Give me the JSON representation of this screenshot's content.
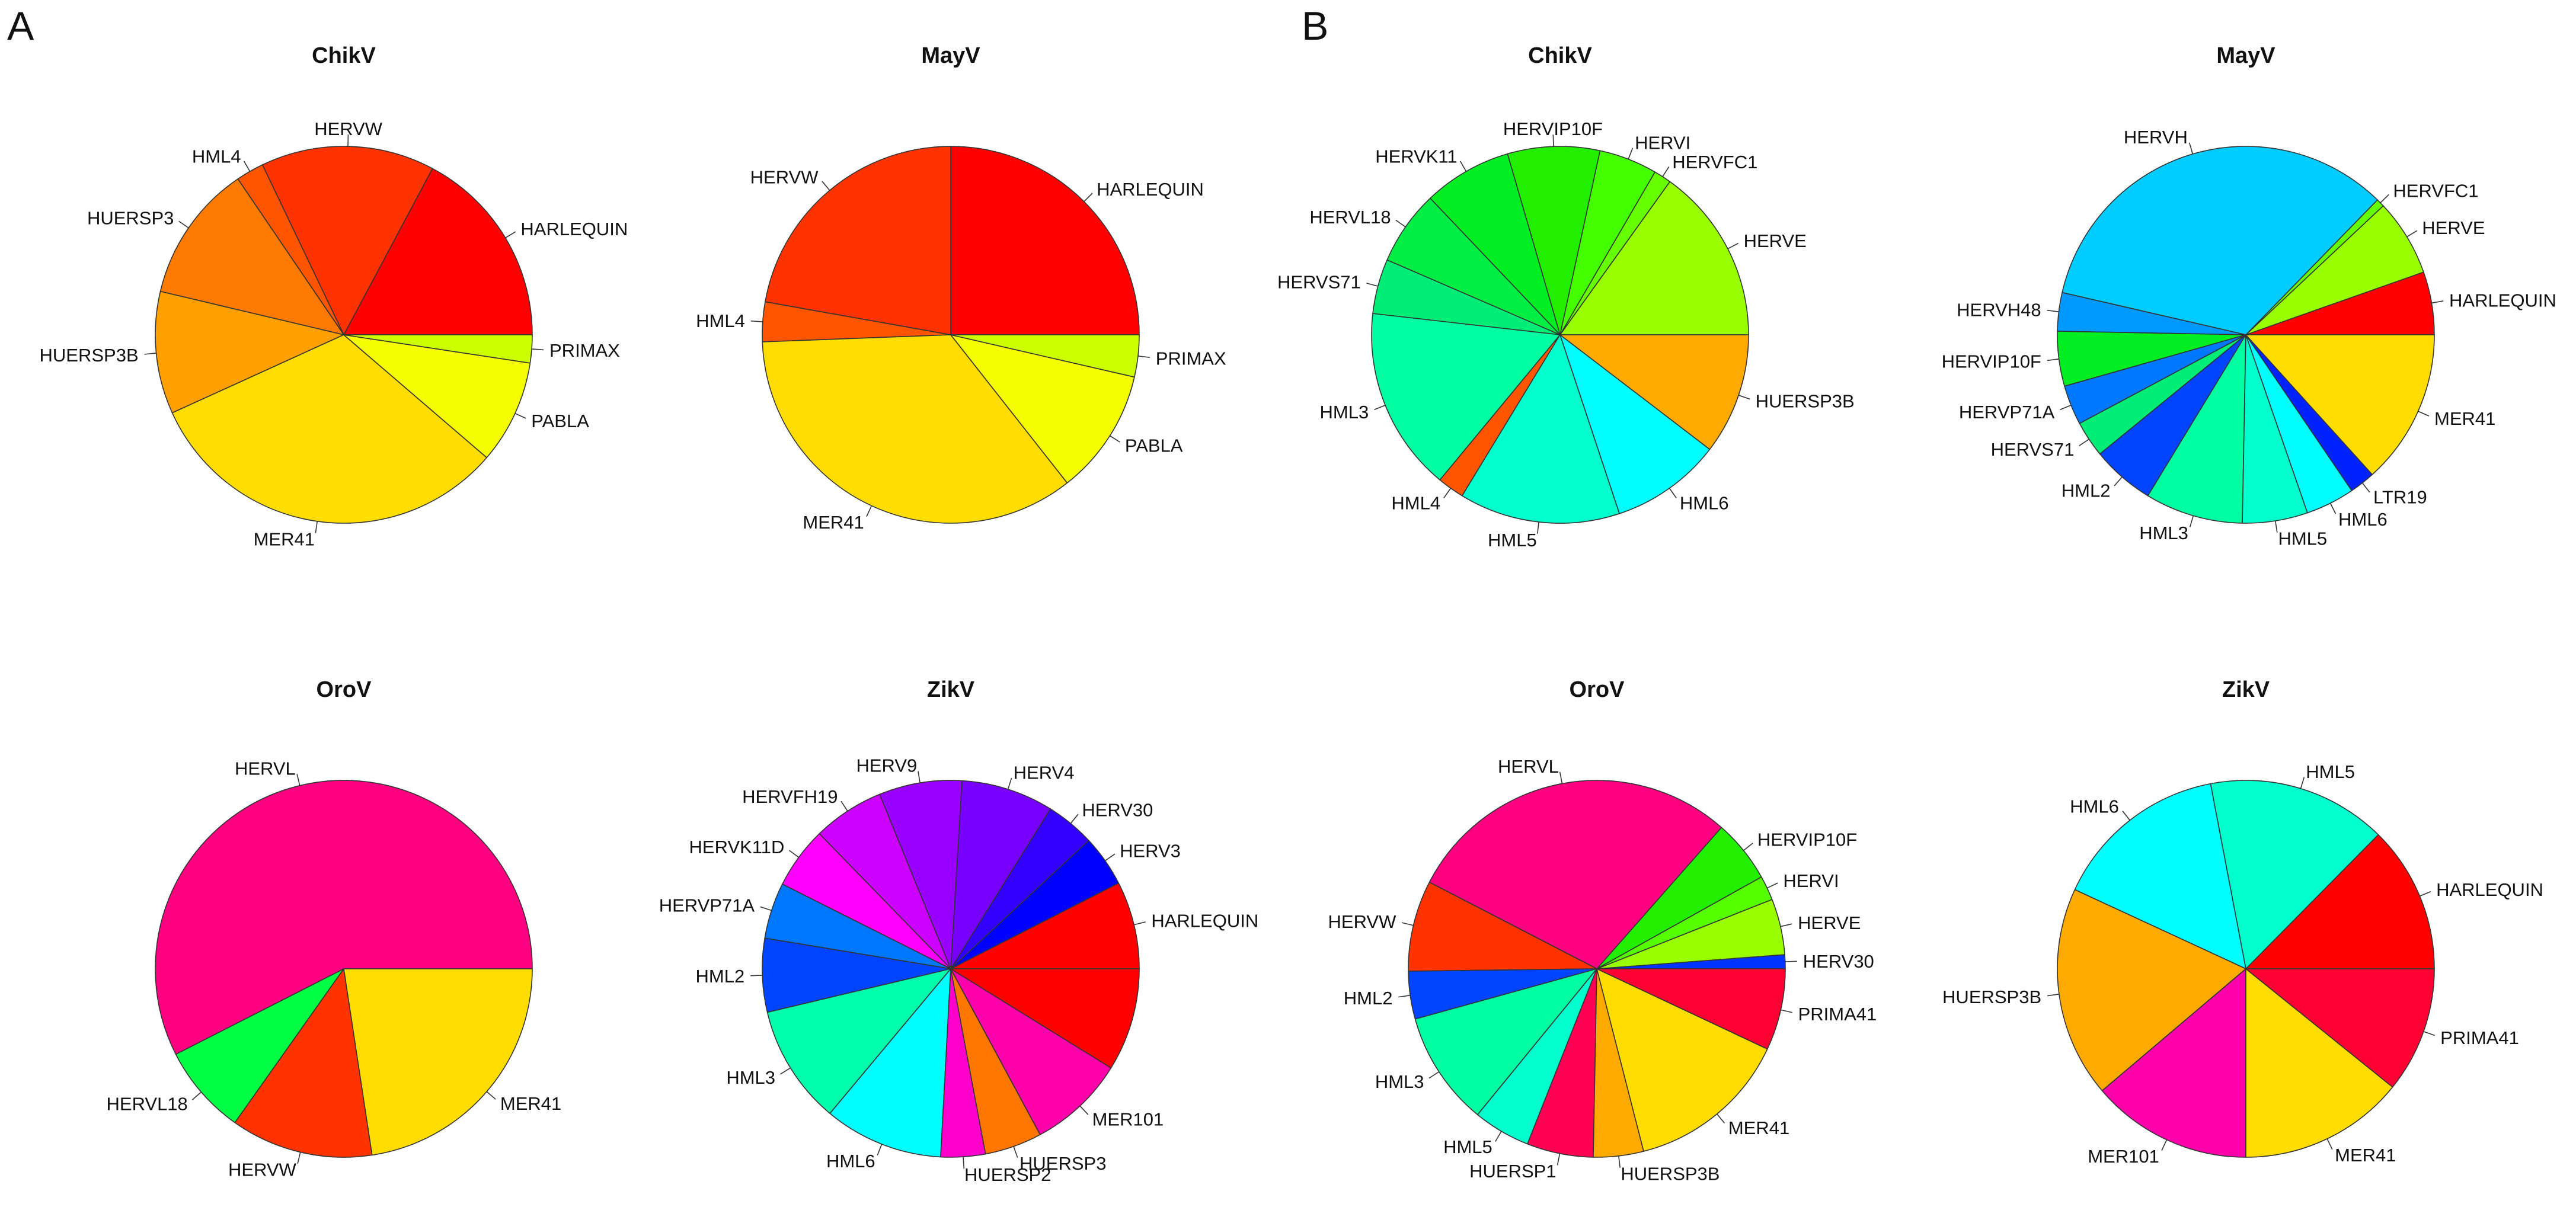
{
  "figure": {
    "panels": [
      {
        "label": "A"
      },
      {
        "label": "B"
      }
    ]
  },
  "chart_data": [
    {
      "panel": "A",
      "type": "pie",
      "title": "ChikV",
      "start": "right",
      "direction": "counterclockwise",
      "slices": [
        {
          "label": "HARLEQUIN",
          "value": 17.2,
          "color": "#FF0000"
        },
        {
          "label": "HERVW",
          "value": 14.9,
          "color": "#FF3300"
        },
        {
          "label": "HML4",
          "value": 2.4,
          "color": "#FF5500"
        },
        {
          "label": "HUERSP3",
          "value": 11.8,
          "color": "#FF7A00"
        },
        {
          "label": "HUERSP3B",
          "value": 10.5,
          "color": "#FF9F00"
        },
        {
          "label": "MER41",
          "value": 31.9,
          "color": "#FFDD00"
        },
        {
          "label": "PABLA",
          "value": 8.9,
          "color": "#F5FF00"
        },
        {
          "label": "PRIMAX",
          "value": 2.4,
          "color": "#CCFF00"
        }
      ]
    },
    {
      "panel": "A",
      "type": "pie",
      "title": "MayV",
      "start": "right",
      "direction": "counterclockwise",
      "slices": [
        {
          "label": "HARLEQUIN",
          "value": 25.0,
          "color": "#FF0000"
        },
        {
          "label": "HERVW",
          "value": 22.2,
          "color": "#FF3300"
        },
        {
          "label": "HML4",
          "value": 3.4,
          "color": "#FF5500"
        },
        {
          "label": "MER41",
          "value": 35.0,
          "color": "#FFDD00"
        },
        {
          "label": "PABLA",
          "value": 10.8,
          "color": "#F5FF00"
        },
        {
          "label": "PRIMAX",
          "value": 3.6,
          "color": "#CCFF00"
        }
      ]
    },
    {
      "panel": "A",
      "type": "pie",
      "title": "OroV",
      "start": "right",
      "direction": "counterclockwise",
      "slices": [
        {
          "label": "HERVL",
          "value": 57.5,
          "color": "#FF0080"
        },
        {
          "label": "HERVL18",
          "value": 7.7,
          "color": "#00FF44"
        },
        {
          "label": "HERVW",
          "value": 12.2,
          "color": "#FF3300"
        },
        {
          "label": "MER41",
          "value": 22.6,
          "color": "#FFDD00"
        }
      ]
    },
    {
      "panel": "A",
      "type": "pie",
      "title": "ZikV",
      "start": "right",
      "direction": "counterclockwise",
      "slices": [
        {
          "label": "HARLEQUIN",
          "value": 7.5,
          "color": "#FF0000"
        },
        {
          "label": "HERV3",
          "value": 4.4,
          "color": "#0000FF"
        },
        {
          "label": "HERV30",
          "value": 4.2,
          "color": "#3300FF"
        },
        {
          "label": "HERV4",
          "value": 7.9,
          "color": "#7700FF"
        },
        {
          "label": "HERV9",
          "value": 7.1,
          "color": "#9900FF"
        },
        {
          "label": "HERVFH19",
          "value": 6.1,
          "color": "#CC00FF"
        },
        {
          "label": "HERVK11D",
          "value": 5.3,
          "color": "#FF00FF"
        },
        {
          "label": "HERVP71A",
          "value": 4.8,
          "color": "#0077FF"
        },
        {
          "label": "HML2",
          "value": 6.3,
          "color": "#0044FF"
        },
        {
          "label": "HML3",
          "value": 10.2,
          "color": "#00FFAA"
        },
        {
          "label": "HML6",
          "value": 10.2,
          "color": "#00FFFF"
        },
        {
          "label": "HUERSP2",
          "value": 3.8,
          "color": "#FF00CC"
        },
        {
          "label": "HUERSP3",
          "value": 4.9,
          "color": "#FF7700"
        },
        {
          "label": "MER101",
          "value": 8.3,
          "color": "#FF00AA"
        },
        {
          "label": "",
          "value": 8.8,
          "color": "#FF0000"
        }
      ]
    },
    {
      "panel": "B",
      "type": "pie",
      "title": "ChikV",
      "start": "right",
      "direction": "counterclockwise",
      "slices": [
        {
          "label": "HERVE",
          "value": 15.1,
          "color": "#99FF00"
        },
        {
          "label": "HERVFC1",
          "value": 1.5,
          "color": "#66FF00"
        },
        {
          "label": "HERVI",
          "value": 5.0,
          "color": "#44FF00"
        },
        {
          "label": "HERVIP10F",
          "value": 7.9,
          "color": "#22EE00"
        },
        {
          "label": "HERVK11",
          "value": 7.6,
          "color": "#00EE22"
        },
        {
          "label": "HERVL18",
          "value": 6.4,
          "color": "#00EE44"
        },
        {
          "label": "HERVS71",
          "value": 4.7,
          "color": "#00EE77"
        },
        {
          "label": "HML3",
          "value": 15.8,
          "color": "#00FFA0"
        },
        {
          "label": "HML4",
          "value": 2.3,
          "color": "#FF5500"
        },
        {
          "label": "HML5",
          "value": 13.8,
          "color": "#00FFCC"
        },
        {
          "label": "HML6",
          "value": 9.5,
          "color": "#00FFFF"
        },
        {
          "label": "HUERSP3B",
          "value": 10.4,
          "color": "#FFAA00"
        }
      ]
    },
    {
      "panel": "B",
      "type": "pie",
      "title": "MayV",
      "start": "right",
      "direction": "counterclockwise",
      "slices": [
        {
          "label": "HARLEQUIN",
          "value": 5.4,
          "color": "#FF0000"
        },
        {
          "label": "HERVE",
          "value": 6.6,
          "color": "#99FF00"
        },
        {
          "label": "HERVFC1",
          "value": 0.7,
          "color": "#66FF00"
        },
        {
          "label": "HERVH",
          "value": 33.7,
          "color": "#00CCFF"
        },
        {
          "label": "HERVH48",
          "value": 3.3,
          "color": "#0099FF"
        },
        {
          "label": "HERVIP10F",
          "value": 4.7,
          "color": "#00EE22"
        },
        {
          "label": "HERVP71A",
          "value": 3.4,
          "color": "#0077FF"
        },
        {
          "label": "HERVS71",
          "value": 3.1,
          "color": "#00EE77"
        },
        {
          "label": "HML2",
          "value": 5.4,
          "color": "#0044FF"
        },
        {
          "label": "HML3",
          "value": 8.4,
          "color": "#00FFA0"
        },
        {
          "label": "HML5",
          "value": 5.6,
          "color": "#00FFCC"
        },
        {
          "label": "HML6",
          "value": 4.2,
          "color": "#00FFFF"
        },
        {
          "label": "LTR19",
          "value": 2.2,
          "color": "#0022FF"
        },
        {
          "label": "MER41",
          "value": 13.3,
          "color": "#FFDD00"
        }
      ]
    },
    {
      "panel": "B",
      "type": "pie",
      "title": "OroV",
      "start": "right",
      "direction": "counterclockwise",
      "slices": [
        {
          "label": "HERV30",
          "value": 1.2,
          "color": "#0033FF"
        },
        {
          "label": "HERVE",
          "value": 4.8,
          "color": "#99FF00"
        },
        {
          "label": "HERVI",
          "value": 2.1,
          "color": "#55FF00"
        },
        {
          "label": "HERVIP10F",
          "value": 5.4,
          "color": "#22EE00"
        },
        {
          "label": "HERVL",
          "value": 28.9,
          "color": "#FF0080"
        },
        {
          "label": "HERVW",
          "value": 7.8,
          "color": "#FF3300"
        },
        {
          "label": "HML2",
          "value": 4.1,
          "color": "#0044FF"
        },
        {
          "label": "HML3",
          "value": 9.8,
          "color": "#00FFA0"
        },
        {
          "label": "HML5",
          "value": 4.9,
          "color": "#00FFCC"
        },
        {
          "label": "HUERSP1",
          "value": 5.7,
          "color": "#FF0055"
        },
        {
          "label": "HUERSP3B",
          "value": 4.3,
          "color": "#FFAA00"
        },
        {
          "label": "MER41",
          "value": 14.0,
          "color": "#FFDD00"
        },
        {
          "label": "PRIMA41",
          "value": 7.0,
          "color": "#FF0033"
        }
      ]
    },
    {
      "panel": "B",
      "type": "pie",
      "title": "ZikV",
      "start": "right",
      "direction": "counterclockwise",
      "slices": [
        {
          "label": "HARLEQUIN",
          "value": 12.6,
          "color": "#FF0000"
        },
        {
          "label": "HML5",
          "value": 15.4,
          "color": "#00FFCC"
        },
        {
          "label": "HML6",
          "value": 15.1,
          "color": "#00FFFF"
        },
        {
          "label": "HUERSP3B",
          "value": 18.1,
          "color": "#FFAA00"
        },
        {
          "label": "MER101",
          "value": 13.8,
          "color": "#FF00AA"
        },
        {
          "label": "MER41",
          "value": 14.2,
          "color": "#FFDD00"
        },
        {
          "label": "PRIMA41",
          "value": 10.8,
          "color": "#FF0033"
        }
      ]
    }
  ]
}
